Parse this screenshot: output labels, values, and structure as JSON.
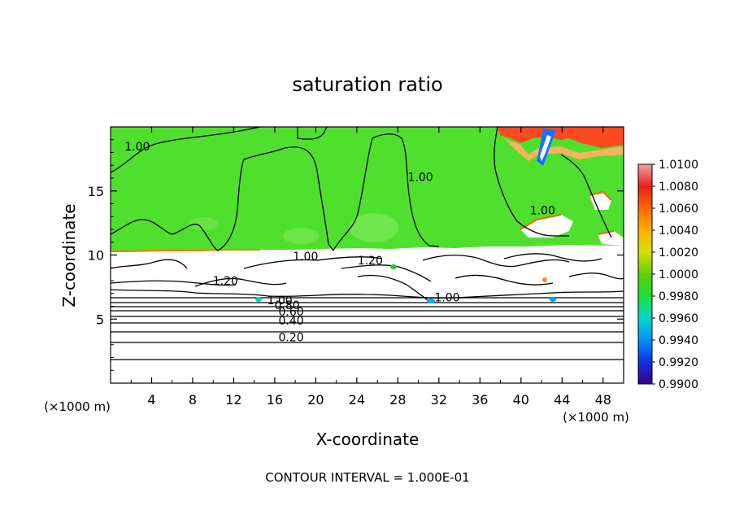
{
  "chart_data": {
    "type": "heatmap",
    "title": "saturation ratio",
    "xlabel": "X-coordinate",
    "ylabel": "Z-coordinate",
    "x_unit": "(×1000 m)",
    "y_unit": "(×1000 m)",
    "xlim": [
      0,
      50
    ],
    "ylim": [
      0,
      20
    ],
    "x_ticks": [
      4,
      8,
      12,
      16,
      20,
      24,
      28,
      32,
      36,
      40,
      44,
      48
    ],
    "y_ticks": [
      5,
      10,
      15
    ],
    "footer": "CONTOUR INTERVAL = 1.000E-01",
    "colorbar": {
      "min": 0.99,
      "max": 1.01,
      "levels": [
        {
          "value": "1.0100",
          "color": "#f5a0a0"
        },
        {
          "value": "1.0080",
          "color": "#e8201a"
        },
        {
          "value": "1.0060",
          "color": "#ff6a00"
        },
        {
          "value": "1.0040",
          "color": "#ffb000"
        },
        {
          "value": "1.0020",
          "color": "#d6e000"
        },
        {
          "value": "1.0000",
          "color": "#5ed000"
        },
        {
          "value": "0.9980",
          "color": "#18e23a"
        },
        {
          "value": "0.9960",
          "color": "#00d8c8"
        },
        {
          "value": "0.9940",
          "color": "#0090ff"
        },
        {
          "value": "0.9920",
          "color": "#1030e0"
        },
        {
          "value": "0.9900",
          "color": "#3a008a"
        }
      ]
    },
    "contour_labels": [
      {
        "text": "1.00",
        "x": 2.6,
        "z": 18.3
      },
      {
        "text": "1.00",
        "x": 30.2,
        "z": 15.9
      },
      {
        "text": "1.00",
        "x": 42.1,
        "z": 13.3
      },
      {
        "text": "1.00",
        "x": 19.0,
        "z": 9.7
      },
      {
        "text": "1.20",
        "x": 25.3,
        "z": 9.4
      },
      {
        "text": "1.20",
        "x": 11.2,
        "z": 7.8
      },
      {
        "text": "1.00",
        "x": 32.8,
        "z": 6.5
      },
      {
        "text": "1.00",
        "x": 16.5,
        "z": 6.3
      },
      {
        "text": "0.80",
        "x": 17.2,
        "z": 5.9
      },
      {
        "text": "0.60",
        "x": 17.6,
        "z": 5.4
      },
      {
        "text": "0.40",
        "x": 17.6,
        "z": 4.7
      },
      {
        "text": "0.20",
        "x": 17.6,
        "z": 3.4
      }
    ]
  }
}
